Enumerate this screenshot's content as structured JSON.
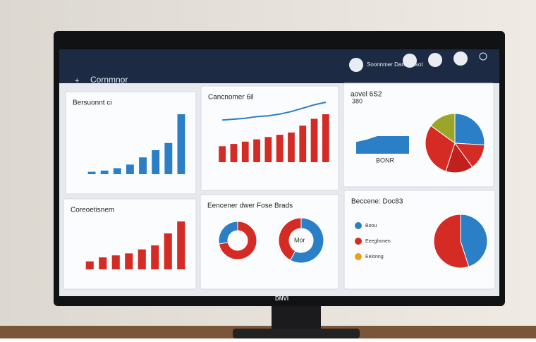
{
  "header": {
    "title": "Cornmnor",
    "user": "Soonnmer Dannectsot",
    "brand": "DNVI"
  },
  "chart_data": [
    {
      "type": "bar",
      "title": "Bersuonnt ci",
      "values": [
        1,
        1.5,
        2.5,
        4,
        7,
        10,
        13,
        25
      ],
      "color": "#2a7fc6"
    },
    {
      "type": "bar-line",
      "title": "Cancnomer 6il",
      "values": [
        7,
        8,
        9,
        10,
        11,
        12,
        13,
        16,
        19,
        21
      ],
      "color": "#d42b24",
      "line": {
        "values": [
          2,
          2.5,
          3,
          4,
          4.5,
          5.5,
          7,
          9,
          11,
          12.5
        ],
        "color": "#2a7fc6"
      }
    },
    {
      "type": "area-pie",
      "title": "aovel 6S2",
      "subtitle": "380",
      "label": "BONR",
      "area": {
        "values": [
          5,
          6,
          7.5,
          7.5,
          7.5,
          7.5
        ],
        "color": "#2a7fc6"
      },
      "values": [
        26,
        14,
        15,
        30,
        15
      ],
      "colors": [
        "#2a7fc6",
        "#d42b24",
        "#c0211d",
        "#d42b24",
        "#9aa62a"
      ]
    },
    {
      "type": "bar",
      "title": "Coreoetisnem",
      "values": [
        2,
        3,
        3.5,
        4,
        5,
        6,
        9,
        12
      ],
      "color": "#d42b24"
    },
    {
      "type": "donut",
      "title": "Eencener dwer Fose Brads",
      "label": "Mor",
      "series": [
        {
          "values": [
            72,
            28
          ],
          "colors": [
            "#d42b24",
            "#2a7fc6"
          ]
        },
        {
          "values": [
            58,
            42
          ],
          "colors": [
            "#2a7fc6",
            "#d42b24"
          ]
        }
      ]
    },
    {
      "type": "pie",
      "title": "Beccene: Doc83",
      "legend": [
        "Boou",
        "Eeeghnnen",
        "Eelonng"
      ],
      "legend_colors": [
        "#2a7fc6",
        "#d42b24",
        "#e8a21c"
      ],
      "values": [
        45,
        55
      ],
      "colors": [
        "#2a7fc6",
        "#d42b24"
      ]
    }
  ]
}
